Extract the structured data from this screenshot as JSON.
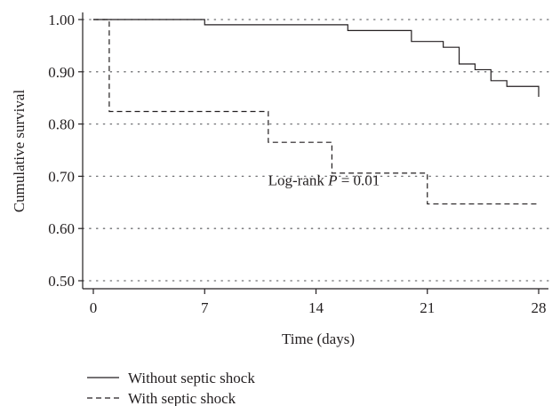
{
  "chart_data": {
    "type": "line",
    "subtype": "step (Kaplan-Meier survival curve)",
    "xlabel": "Time (days)",
    "ylabel": "Cumulative survival",
    "xlim": [
      0,
      28
    ],
    "ylim": [
      0.5,
      1.0
    ],
    "xticks": [
      0,
      7,
      14,
      21,
      28
    ],
    "xtick_labels": [
      "0",
      "7",
      "14",
      "21",
      "28"
    ],
    "yticks": [
      0.5,
      0.6,
      0.7,
      0.8,
      0.9,
      1.0
    ],
    "ytick_labels": [
      "0.50",
      "0.60",
      "0.70",
      "0.80",
      "0.90",
      "1.00"
    ],
    "grid": "horizontal dotted",
    "legend_position": "bottom-left",
    "annotation": {
      "prefix": "Log-rank ",
      "italic": "P",
      "suffix": " = 0.01",
      "x": 14.5,
      "y": 0.683
    },
    "series": [
      {
        "name": "Without septic shock",
        "style": "solid",
        "color": "#231f20",
        "x": [
          0,
          7,
          16,
          20,
          22,
          23,
          24,
          25,
          26,
          27,
          28
        ],
        "y": [
          1.0,
          0.99,
          0.979,
          0.958,
          0.947,
          0.915,
          0.904,
          0.883,
          0.872,
          0.872,
          0.852
        ]
      },
      {
        "name": "With septic shock",
        "style": "dashed",
        "color": "#231f20",
        "x": [
          0,
          1,
          11,
          15,
          21,
          28
        ],
        "y": [
          1.0,
          0.824,
          0.765,
          0.706,
          0.647,
          0.647
        ]
      }
    ]
  }
}
